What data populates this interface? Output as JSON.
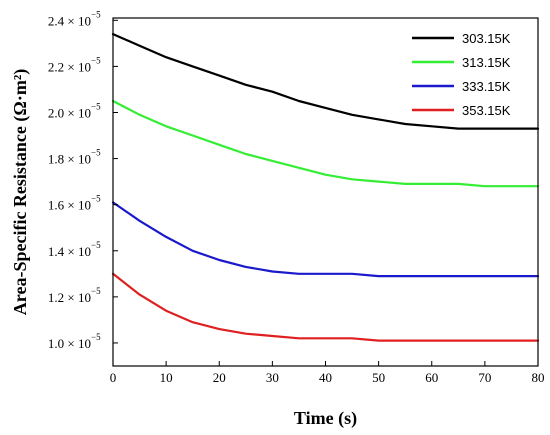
{
  "chart_data": {
    "type": "line",
    "xlabel": "Time (s)",
    "ylabel": "Area-Specific Resistance (Ω·m²)",
    "xlim": [
      0,
      80
    ],
    "ylim": [
      9e-06,
      2.41e-05
    ],
    "x_ticks": [
      0,
      10,
      20,
      30,
      40,
      50,
      60,
      70,
      80
    ],
    "y_ticks": [
      1e-05,
      1.2e-05,
      1.4e-05,
      1.6e-05,
      1.8e-05,
      2e-05,
      2.2e-05,
      2.4e-05
    ],
    "y_tick_labels": [
      {
        "mantissa": "1.0 × 10",
        "exponent": "−5"
      },
      {
        "mantissa": "1.2 × 10",
        "exponent": "−5"
      },
      {
        "mantissa": "1.4 × 10",
        "exponent": "−5"
      },
      {
        "mantissa": "1.6 × 10",
        "exponent": "−5"
      },
      {
        "mantissa": "1.8 × 10",
        "exponent": "−5"
      },
      {
        "mantissa": "2.0 × 10",
        "exponent": "−5"
      },
      {
        "mantissa": "2.2 × 10",
        "exponent": "−5"
      },
      {
        "mantissa": "2.4 × 10",
        "exponent": "−5"
      }
    ],
    "grid": false,
    "legend_position": "top-right",
    "series": [
      {
        "name": "303.15K",
        "color": "#000000",
        "x": [
          0,
          5,
          10,
          15,
          20,
          25,
          30,
          35,
          40,
          45,
          50,
          55,
          60,
          65,
          70,
          75,
          80
        ],
        "y": [
          2.34e-05,
          2.29e-05,
          2.24e-05,
          2.2e-05,
          2.16e-05,
          2.12e-05,
          2.09e-05,
          2.05e-05,
          2.02e-05,
          1.99e-05,
          1.97e-05,
          1.95e-05,
          1.94e-05,
          1.93e-05,
          1.93e-05,
          1.93e-05,
          1.93e-05
        ]
      },
      {
        "name": "313.15K",
        "color": "#33ee33",
        "x": [
          0,
          5,
          10,
          15,
          20,
          25,
          30,
          35,
          40,
          45,
          50,
          55,
          60,
          65,
          70,
          75,
          80
        ],
        "y": [
          2.05e-05,
          1.99e-05,
          1.94e-05,
          1.9e-05,
          1.86e-05,
          1.82e-05,
          1.79e-05,
          1.76e-05,
          1.73e-05,
          1.71e-05,
          1.7e-05,
          1.69e-05,
          1.69e-05,
          1.69e-05,
          1.68e-05,
          1.68e-05,
          1.68e-05
        ]
      },
      {
        "name": "333.15K",
        "color": "#1a1acc",
        "x": [
          0,
          5,
          10,
          15,
          20,
          25,
          30,
          35,
          40,
          45,
          50,
          55,
          60,
          65,
          70,
          75,
          80
        ],
        "y": [
          1.61e-05,
          1.53e-05,
          1.46e-05,
          1.4e-05,
          1.36e-05,
          1.33e-05,
          1.31e-05,
          1.3e-05,
          1.3e-05,
          1.3e-05,
          1.29e-05,
          1.29e-05,
          1.29e-05,
          1.29e-05,
          1.29e-05,
          1.29e-05,
          1.29e-05
        ]
      },
      {
        "name": "353.15K",
        "color": "#e02020",
        "x": [
          0,
          5,
          10,
          15,
          20,
          25,
          30,
          35,
          40,
          45,
          50,
          55,
          60,
          65,
          70,
          75,
          80
        ],
        "y": [
          1.3e-05,
          1.21e-05,
          1.14e-05,
          1.09e-05,
          1.06e-05,
          1.04e-05,
          1.03e-05,
          1.02e-05,
          1.02e-05,
          1.02e-05,
          1.01e-05,
          1.01e-05,
          1.01e-05,
          1.01e-05,
          1.01e-05,
          1.01e-05,
          1.01e-05
        ]
      }
    ]
  }
}
